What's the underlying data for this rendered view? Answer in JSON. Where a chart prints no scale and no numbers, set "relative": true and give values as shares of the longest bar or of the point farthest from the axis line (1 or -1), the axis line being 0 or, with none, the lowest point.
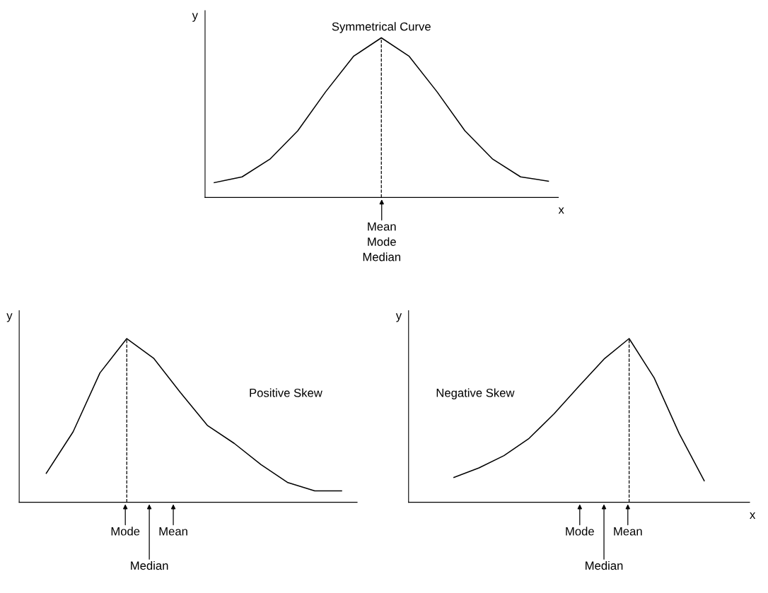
{
  "chart_data": [
    {
      "type": "line",
      "title": "Symmetrical Curve",
      "xlabel": "x",
      "ylabel": "y",
      "relative": true,
      "color": "#000000",
      "categories": [
        null,
        null,
        null,
        null,
        null,
        null,
        null,
        null,
        null,
        null,
        null,
        null,
        null
      ],
      "values": [
        0.093,
        0.129,
        0.24,
        0.418,
        0.662,
        0.884,
        1,
        0.884,
        0.662,
        0.418,
        0.24,
        0.129,
        0.102
      ],
      "annotations": [
        "Mean\nMode\nMedian"
      ]
    },
    {
      "type": "line",
      "title": "Positive Skew",
      "ylabel": "y",
      "relative": true,
      "color": "#000000",
      "categories": [
        null,
        null,
        null,
        null,
        null,
        null,
        null,
        null,
        null,
        null,
        null,
        null
      ],
      "values": [
        0.177,
        0.43,
        0.79,
        1,
        0.88,
        0.67,
        0.47,
        0.36,
        0.23,
        0.12,
        0.07,
        0.07
      ],
      "annotations": [
        "Mode",
        "Median",
        "Mean"
      ]
    },
    {
      "type": "line",
      "title": "Negative Skew",
      "xlabel": "x",
      "ylabel": "y",
      "relative": true,
      "color": "#000000",
      "categories": [
        null,
        null,
        null,
        null,
        null,
        null,
        null,
        null,
        null,
        null,
        null
      ],
      "values": [
        0.152,
        0.21,
        0.285,
        0.39,
        0.54,
        0.71,
        0.875,
        1,
        0.76,
        0.42,
        0.131
      ],
      "annotations": [
        "Mode",
        "Median",
        "Mean"
      ]
    }
  ]
}
